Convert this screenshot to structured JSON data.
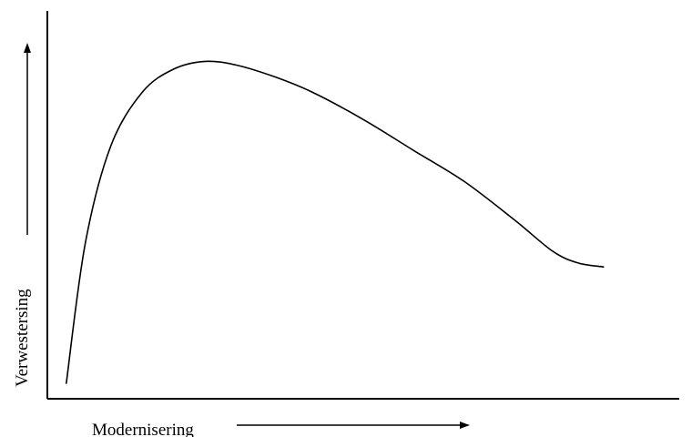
{
  "chart_data": {
    "type": "line",
    "title": "",
    "xlabel": "Modernisering",
    "ylabel": "Verwestersing",
    "xlim": [
      0,
      1
    ],
    "ylim": [
      0,
      1
    ],
    "grid": false,
    "series": [
      {
        "color": "#000000",
        "x": [
          0.03,
          0.06,
          0.1,
          0.15,
          0.2,
          0.25,
          0.3,
          0.36,
          0.42,
          0.5,
          0.58,
          0.66,
          0.74,
          0.8,
          0.84,
          0.88
        ],
        "y": [
          0.04,
          0.4,
          0.65,
          0.79,
          0.85,
          0.87,
          0.86,
          0.83,
          0.79,
          0.72,
          0.64,
          0.56,
          0.46,
          0.38,
          0.35,
          0.34
        ]
      }
    ]
  }
}
